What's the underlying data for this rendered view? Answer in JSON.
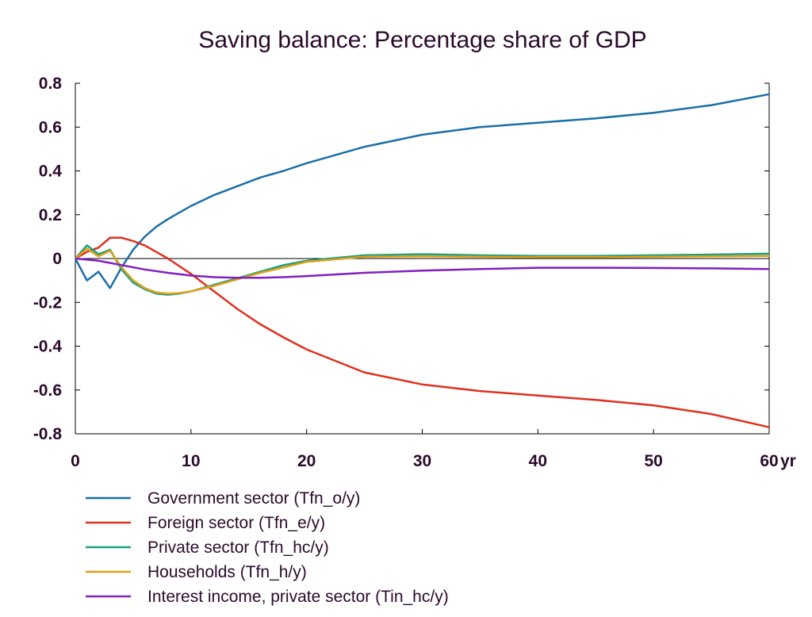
{
  "chart_data": {
    "type": "line",
    "title": "Saving balance: Percentage share of GDP",
    "xlabel": "",
    "ylabel": "",
    "x_unit_label": "yr",
    "xlim": [
      0,
      60
    ],
    "ylim": [
      -0.8,
      0.8
    ],
    "x_ticks": [
      0,
      10,
      20,
      30,
      40,
      50,
      60
    ],
    "x_tick_labels": [
      "0",
      "10",
      "20",
      "30",
      "40",
      "50",
      "60"
    ],
    "y_ticks": [
      -0.8,
      -0.6,
      -0.4,
      -0.2,
      0,
      0.2,
      0.4,
      0.6,
      0.8
    ],
    "y_tick_labels": [
      "-0.8",
      "-0.6",
      "-0.4",
      "-0.2",
      "0",
      "0.2",
      "0.4",
      "0.6",
      "0.8"
    ],
    "grid": false,
    "zero_line": true,
    "legend_position": "bottom",
    "series": [
      {
        "name": "Government sector (Tfn_o/y)",
        "color": "#1a6fa8",
        "x": [
          0,
          1,
          2,
          3,
          4,
          5,
          6,
          7,
          8,
          10,
          12,
          14,
          16,
          18,
          20,
          25,
          30,
          35,
          40,
          45,
          50,
          55,
          60
        ],
        "y": [
          0,
          -0.1,
          -0.06,
          -0.135,
          -0.04,
          0.04,
          0.1,
          0.145,
          0.18,
          0.24,
          0.29,
          0.33,
          0.37,
          0.4,
          0.435,
          0.51,
          0.565,
          0.6,
          0.62,
          0.64,
          0.665,
          0.7,
          0.75
        ]
      },
      {
        "name": "Foreign sector (Tfn_e/y)",
        "color": "#e03020",
        "x": [
          0,
          1,
          2,
          3,
          4,
          5,
          6,
          7,
          8,
          10,
          12,
          14,
          16,
          18,
          20,
          25,
          30,
          35,
          40,
          45,
          50,
          55,
          60
        ],
        "y": [
          0,
          0.03,
          0.05,
          0.095,
          0.095,
          0.08,
          0.06,
          0.03,
          0.0,
          -0.07,
          -0.15,
          -0.23,
          -0.3,
          -0.36,
          -0.415,
          -0.52,
          -0.575,
          -0.605,
          -0.625,
          -0.645,
          -0.67,
          -0.71,
          -0.77
        ]
      },
      {
        "name": "Private sector (Tfn_hc/y)",
        "color": "#18a080",
        "x": [
          0,
          1,
          2,
          3,
          4,
          5,
          6,
          7,
          8,
          9,
          10,
          12,
          14,
          16,
          18,
          20,
          25,
          30,
          35,
          40,
          45,
          50,
          55,
          60
        ],
        "y": [
          0,
          0.06,
          0.02,
          0.04,
          -0.05,
          -0.11,
          -0.14,
          -0.16,
          -0.165,
          -0.16,
          -0.15,
          -0.12,
          -0.09,
          -0.06,
          -0.03,
          -0.01,
          0.015,
          0.02,
          0.015,
          0.012,
          0.012,
          0.015,
          0.018,
          0.022
        ]
      },
      {
        "name": "Households (Tfn_h/y)",
        "color": "#e0a018",
        "x": [
          0,
          1,
          2,
          3,
          4,
          5,
          6,
          7,
          8,
          9,
          10,
          12,
          14,
          16,
          18,
          20,
          25,
          30,
          35,
          40,
          45,
          50,
          55,
          60
        ],
        "y": [
          0,
          0.045,
          0.01,
          0.035,
          -0.04,
          -0.1,
          -0.135,
          -0.155,
          -0.16,
          -0.158,
          -0.15,
          -0.125,
          -0.095,
          -0.065,
          -0.04,
          -0.015,
          0.008,
          0.01,
          0.008,
          0.006,
          0.006,
          0.008,
          0.01,
          0.012
        ]
      },
      {
        "name": "Interest income, private sector (Tin_hc/y)",
        "color": "#8020c0",
        "x": [
          0,
          2,
          4,
          6,
          8,
          10,
          12,
          14,
          16,
          18,
          20,
          25,
          30,
          35,
          40,
          45,
          50,
          55,
          60
        ],
        "y": [
          0,
          -0.01,
          -0.03,
          -0.05,
          -0.065,
          -0.078,
          -0.085,
          -0.088,
          -0.088,
          -0.085,
          -0.08,
          -0.065,
          -0.055,
          -0.048,
          -0.042,
          -0.042,
          -0.043,
          -0.045,
          -0.048
        ]
      }
    ]
  }
}
